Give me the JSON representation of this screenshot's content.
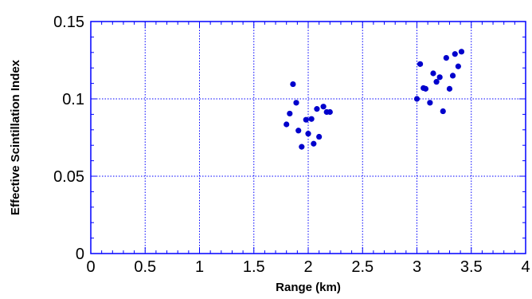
{
  "chart_data": {
    "type": "scatter",
    "title": "",
    "xlabel": "Range (km)",
    "ylabel": "Effective Scintillation Index",
    "xlim": [
      0,
      4
    ],
    "ylim": [
      0,
      0.15
    ],
    "x_ticks": [
      0,
      0.5,
      1,
      1.5,
      2,
      2.5,
      3,
      3.5,
      4
    ],
    "x_tick_labels": [
      "0",
      "0.5",
      "1",
      "1.5",
      "2",
      "2.5",
      "3",
      "3.5",
      "4"
    ],
    "y_ticks": [
      0,
      0.05,
      0.1,
      0.15
    ],
    "y_tick_labels": [
      "0",
      "0.05",
      "0.1",
      "0.15"
    ],
    "grid": true,
    "legend": "none",
    "colors": {
      "axis": "#0000ff",
      "grid": "#0000ff",
      "marker": "#0000cc"
    },
    "series": [
      {
        "points": [
          {
            "x": 1.8,
            "y": 0.0835
          },
          {
            "x": 1.83,
            "y": 0.0905
          },
          {
            "x": 1.86,
            "y": 0.1095
          },
          {
            "x": 1.89,
            "y": 0.0975
          },
          {
            "x": 1.91,
            "y": 0.0795
          },
          {
            "x": 1.94,
            "y": 0.069
          },
          {
            "x": 1.98,
            "y": 0.0865
          },
          {
            "x": 2.0,
            "y": 0.0775
          },
          {
            "x": 2.03,
            "y": 0.087
          },
          {
            "x": 2.05,
            "y": 0.071
          },
          {
            "x": 2.08,
            "y": 0.0935
          },
          {
            "x": 2.1,
            "y": 0.0755
          },
          {
            "x": 2.14,
            "y": 0.095
          },
          {
            "x": 2.17,
            "y": 0.0915
          },
          {
            "x": 2.2,
            "y": 0.0915
          },
          {
            "x": 3.0,
            "y": 0.1
          },
          {
            "x": 3.03,
            "y": 0.1225
          },
          {
            "x": 3.06,
            "y": 0.107
          },
          {
            "x": 3.08,
            "y": 0.1065
          },
          {
            "x": 3.12,
            "y": 0.0975
          },
          {
            "x": 3.15,
            "y": 0.1165
          },
          {
            "x": 3.18,
            "y": 0.111
          },
          {
            "x": 3.21,
            "y": 0.114
          },
          {
            "x": 3.24,
            "y": 0.092
          },
          {
            "x": 3.27,
            "y": 0.1265
          },
          {
            "x": 3.3,
            "y": 0.1065
          },
          {
            "x": 3.33,
            "y": 0.115
          },
          {
            "x": 3.35,
            "y": 0.129
          },
          {
            "x": 3.38,
            "y": 0.121
          },
          {
            "x": 3.41,
            "y": 0.1305
          }
        ]
      }
    ]
  }
}
